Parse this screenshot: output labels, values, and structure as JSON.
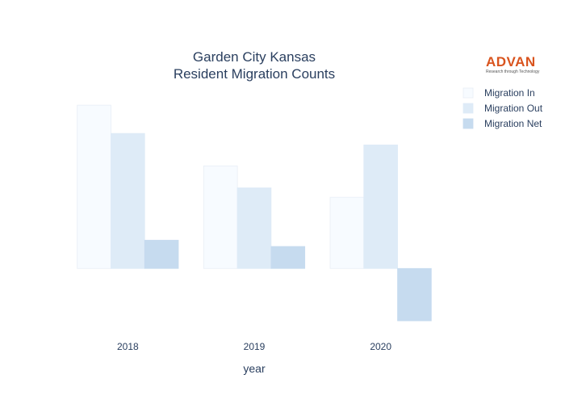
{
  "chart_data": {
    "type": "bar",
    "title_line1": "Garden City Kansas",
    "title_line2": "Resident Migration Counts",
    "xlabel": "year",
    "ylabel": "",
    "categories": [
      "2018",
      "2019",
      "2020"
    ],
    "series": [
      {
        "name": "Migration In",
        "values": [
          1560,
          980,
          680
        ],
        "color": "#f7fbff",
        "stroke": "#e8eef6"
      },
      {
        "name": "Migration Out",
        "values": [
          1290,
          770,
          1180
        ],
        "color": "#deebf7",
        "stroke": "#deebf7"
      },
      {
        "name": "Migration Net",
        "values": [
          270,
          210,
          -500
        ],
        "color": "#c6dbef",
        "stroke": "#c6dbef"
      }
    ],
    "ylim": [
      -600,
      1700
    ],
    "grid": false,
    "legend_position": "right",
    "y_ticks_visible": false
  },
  "logo": {
    "name": "ADVAN",
    "tagline": "Research through Technology"
  }
}
